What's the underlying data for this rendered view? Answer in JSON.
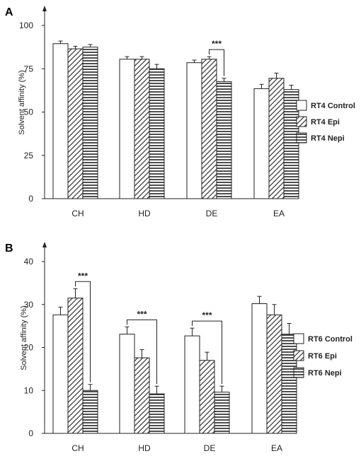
{
  "chart_data": [
    {
      "type": "bar",
      "panel_label": "A",
      "ylabel": "Solvent affinity (%)",
      "ylim": [
        0,
        100
      ],
      "yticks": [
        0,
        25,
        50,
        75,
        100
      ],
      "categories": [
        "CH",
        "HD",
        "DE",
        "EA"
      ],
      "series": [
        {
          "name": "RT4 Control",
          "values": [
            89.5,
            80.5,
            78.5,
            63.5
          ],
          "errors": [
            1.5,
            1.5,
            1.5,
            2.5
          ],
          "pattern": "open"
        },
        {
          "name": "RT4 Epi",
          "values": [
            86.5,
            80.5,
            80.5,
            69.5
          ],
          "errors": [
            1.5,
            1.5,
            1.5,
            3.0
          ],
          "pattern": "diagonal"
        },
        {
          "name": "RT4 Nepi",
          "values": [
            87.5,
            75.0,
            67.5,
            63.0
          ],
          "errors": [
            1.5,
            2.5,
            2.0,
            2.5
          ],
          "pattern": "horizontal"
        }
      ],
      "significance": [
        {
          "category": "DE",
          "between": [
            1,
            2
          ],
          "label": "***"
        }
      ],
      "legend_position": "right"
    },
    {
      "type": "bar",
      "panel_label": "B",
      "ylabel": "Solvent affinity (%)",
      "ylim": [
        0,
        40
      ],
      "yticks": [
        0,
        10,
        20,
        30,
        40
      ],
      "categories": [
        "CH",
        "HD",
        "DE",
        "EA"
      ],
      "series": [
        {
          "name": "RT6 Control",
          "values": [
            27.6,
            23.1,
            22.7,
            30.2
          ],
          "errors": [
            1.8,
            1.7,
            1.8,
            1.7
          ],
          "pattern": "open"
        },
        {
          "name": "RT6 Epi",
          "values": [
            31.5,
            17.6,
            17.0,
            27.6
          ],
          "errors": [
            2.2,
            1.9,
            1.9,
            2.4
          ],
          "pattern": "diagonal"
        },
        {
          "name": "RT6 Nepi",
          "values": [
            10.0,
            9.2,
            9.6,
            23.1
          ],
          "errors": [
            1.4,
            1.8,
            1.4,
            2.5
          ],
          "pattern": "horizontal"
        }
      ],
      "significance": [
        {
          "category": "CH",
          "between": [
            1,
            2
          ],
          "label": "***"
        },
        {
          "category": "HD",
          "between": [
            0,
            2
          ],
          "label": "***"
        },
        {
          "category": "DE",
          "between": [
            0,
            2
          ],
          "label": "***"
        }
      ],
      "legend_position": "right"
    }
  ],
  "colors": {
    "ink": "#222222",
    "fill": "#ffffff"
  }
}
